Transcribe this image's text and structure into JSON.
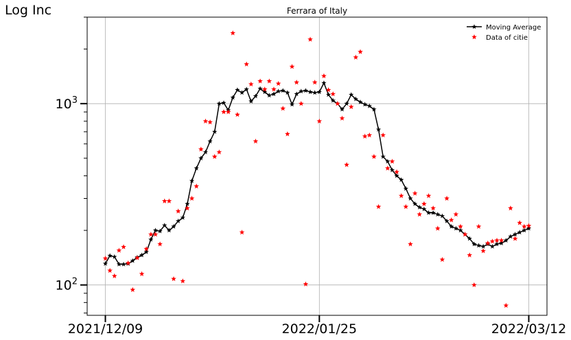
{
  "chart_data": {
    "type": "line",
    "title": "Ferrara of Italy",
    "ylabel": "Log Inc",
    "xlabel": "",
    "yscale": "log",
    "ylim": [
      68,
      3000
    ],
    "xlim": [
      "2021-12-05",
      "2022-03-16"
    ],
    "grid": true,
    "legend_position": "top-right",
    "x_ticks": [
      {
        "date": "2021-12-09",
        "label": "2021/12/09"
      },
      {
        "date": "2022-01-25",
        "label": "2022/01/25"
      },
      {
        "date": "2022-03-12",
        "label": "2022/03/12"
      }
    ],
    "y_ticks": [
      {
        "value": 100,
        "base": "10",
        "exp": "2"
      },
      {
        "value": 1000,
        "base": "10",
        "exp": "3"
      }
    ],
    "series": [
      {
        "name": "Moving Average",
        "style": "line-with-star-markers",
        "color": "#000000",
        "x": [
          "2021-12-09",
          "2021-12-10",
          "2021-12-11",
          "2021-12-12",
          "2021-12-13",
          "2021-12-14",
          "2021-12-15",
          "2021-12-16",
          "2021-12-17",
          "2021-12-18",
          "2021-12-19",
          "2021-12-20",
          "2021-12-21",
          "2021-12-22",
          "2021-12-23",
          "2021-12-24",
          "2021-12-25",
          "2021-12-26",
          "2021-12-27",
          "2021-12-28",
          "2021-12-29",
          "2021-12-30",
          "2021-12-31",
          "2022-01-01",
          "2022-01-02",
          "2022-01-03",
          "2022-01-04",
          "2022-01-05",
          "2022-01-06",
          "2022-01-07",
          "2022-01-08",
          "2022-01-09",
          "2022-01-10",
          "2022-01-11",
          "2022-01-12",
          "2022-01-13",
          "2022-01-14",
          "2022-01-15",
          "2022-01-16",
          "2022-01-17",
          "2022-01-18",
          "2022-01-19",
          "2022-01-20",
          "2022-01-21",
          "2022-01-22",
          "2022-01-23",
          "2022-01-24",
          "2022-01-25",
          "2022-01-26",
          "2022-01-27",
          "2022-01-28",
          "2022-01-29",
          "2022-01-30",
          "2022-01-31",
          "2022-02-01",
          "2022-02-02",
          "2022-02-03",
          "2022-02-04",
          "2022-02-05",
          "2022-02-06",
          "2022-02-07",
          "2022-02-08",
          "2022-02-09",
          "2022-02-10",
          "2022-02-11",
          "2022-02-12",
          "2022-02-13",
          "2022-02-14",
          "2022-02-15",
          "2022-02-16",
          "2022-02-17",
          "2022-02-18",
          "2022-02-19",
          "2022-02-20",
          "2022-02-21",
          "2022-02-22",
          "2022-02-23",
          "2022-02-24",
          "2022-02-25",
          "2022-02-26",
          "2022-02-27",
          "2022-02-28",
          "2022-03-01",
          "2022-03-02",
          "2022-03-03",
          "2022-03-04",
          "2022-03-05",
          "2022-03-06",
          "2022-03-07",
          "2022-03-08",
          "2022-03-09",
          "2022-03-10",
          "2022-03-11",
          "2022-03-12"
        ],
        "y": [
          131,
          145,
          143,
          130,
          130,
          131,
          136,
          142,
          146,
          152,
          178,
          200,
          198,
          213,
          200,
          210,
          225,
          235,
          280,
          375,
          440,
          500,
          540,
          620,
          700,
          1000,
          1010,
          920,
          1080,
          1190,
          1150,
          1200,
          1030,
          1100,
          1210,
          1160,
          1110,
          1130,
          1170,
          1180,
          1150,
          990,
          1130,
          1170,
          1180,
          1160,
          1150,
          1160,
          1300,
          1120,
          1040,
          1000,
          930,
          1000,
          1120,
          1060,
          1020,
          990,
          970,
          930,
          720,
          510,
          480,
          430,
          400,
          380,
          340,
          300,
          280,
          268,
          262,
          250,
          250,
          245,
          240,
          225,
          210,
          205,
          200,
          190,
          180,
          168,
          165,
          163,
          168,
          163,
          168,
          170,
          176,
          185,
          190,
          195,
          200,
          205
        ]
      },
      {
        "name": "Data of citie",
        "style": "star-markers",
        "color": "#ff0000",
        "x": [
          "2021-12-09",
          "2021-12-10",
          "2021-12-11",
          "2021-12-12",
          "2021-12-13",
          "2021-12-14",
          "2021-12-15",
          "2021-12-16",
          "2021-12-17",
          "2021-12-18",
          "2021-12-19",
          "2021-12-20",
          "2021-12-21",
          "2021-12-22",
          "2021-12-23",
          "2021-12-24",
          "2021-12-25",
          "2021-12-26",
          "2021-12-27",
          "2021-12-28",
          "2021-12-29",
          "2021-12-30",
          "2021-12-31",
          "2022-01-01",
          "2022-01-02",
          "2022-01-03",
          "2022-01-04",
          "2022-01-05",
          "2022-01-06",
          "2022-01-07",
          "2022-01-08",
          "2022-01-09",
          "2022-01-10",
          "2022-01-11",
          "2022-01-12",
          "2022-01-13",
          "2022-01-14",
          "2022-01-15",
          "2022-01-16",
          "2022-01-17",
          "2022-01-18",
          "2022-01-19",
          "2022-01-20",
          "2022-01-21",
          "2022-01-22",
          "2022-01-23",
          "2022-01-24",
          "2022-01-25",
          "2022-01-26",
          "2022-01-27",
          "2022-01-28",
          "2022-01-29",
          "2022-01-30",
          "2022-01-31",
          "2022-02-01",
          "2022-02-02",
          "2022-02-03",
          "2022-02-04",
          "2022-02-05",
          "2022-02-06",
          "2022-02-07",
          "2022-02-08",
          "2022-02-09",
          "2022-02-10",
          "2022-02-11",
          "2022-02-12",
          "2022-02-13",
          "2022-02-14",
          "2022-02-15",
          "2022-02-16",
          "2022-02-17",
          "2022-02-18",
          "2022-02-19",
          "2022-02-20",
          "2022-02-21",
          "2022-02-22",
          "2022-02-23",
          "2022-02-24",
          "2022-02-25",
          "2022-02-26",
          "2022-02-27",
          "2022-02-28",
          "2022-03-01",
          "2022-03-02",
          "2022-03-03",
          "2022-03-04",
          "2022-03-05",
          "2022-03-06",
          "2022-03-07",
          "2022-03-08",
          "2022-03-09",
          "2022-03-10",
          "2022-03-11",
          "2022-03-12"
        ],
        "y": [
          140,
          120,
          112,
          155,
          162,
          132,
          94,
          141,
          115,
          158,
          190,
          190,
          168,
          290,
          290,
          108,
          255,
          105,
          265,
          300,
          350,
          560,
          800,
          790,
          510,
          540,
          900,
          900,
          2450,
          870,
          195,
          1650,
          1280,
          620,
          1330,
          1200,
          1330,
          1200,
          1290,
          940,
          680,
          1600,
          1310,
          1000,
          101,
          2260,
          1310,
          800,
          1420,
          1190,
          1130,
          1000,
          830,
          460,
          960,
          1800,
          1930,
          660,
          670,
          510,
          270,
          670,
          440,
          480,
          420,
          310,
          270,
          168,
          320,
          245,
          280,
          310,
          265,
          205,
          138,
          300,
          228,
          245,
          210,
          190,
          146,
          100,
          210,
          154,
          170,
          174,
          176,
          176,
          77,
          265,
          180,
          220,
          210,
          212
        ]
      }
    ]
  }
}
